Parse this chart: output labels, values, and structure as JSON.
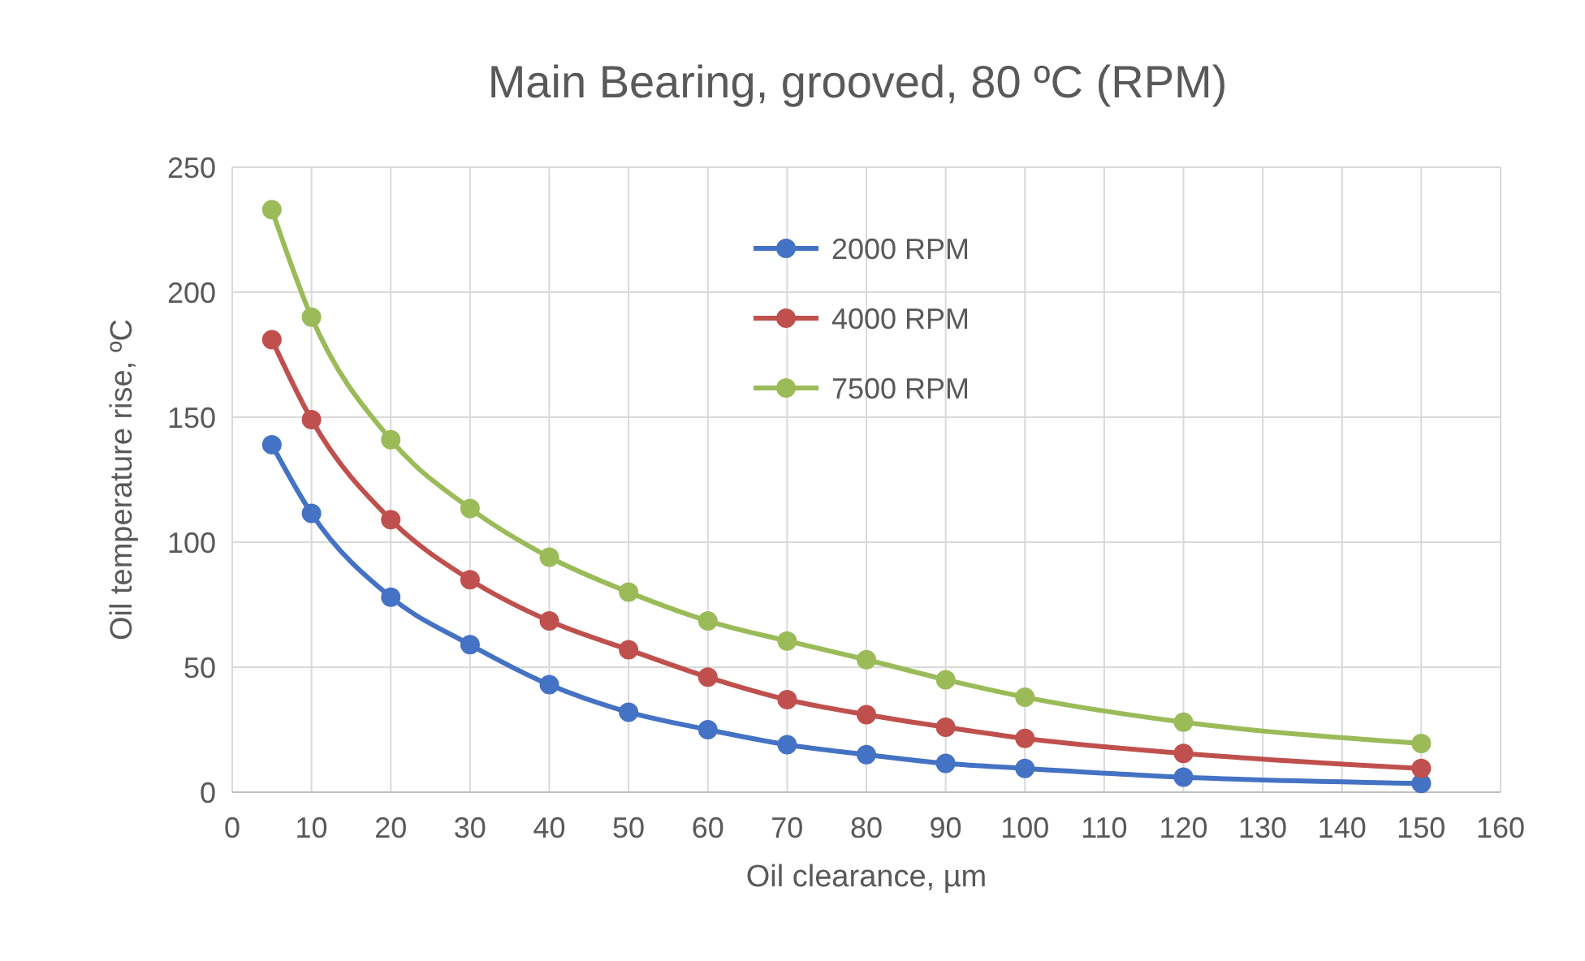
{
  "chart_data": {
    "type": "line",
    "title": "Main Bearing, grooved, 80 ºC (RPM)",
    "xlabel": "Oil clearance, µm",
    "ylabel": "Oil temperature rise, ºC",
    "x": [
      5,
      10,
      20,
      30,
      40,
      50,
      60,
      70,
      80,
      90,
      100,
      120,
      150
    ],
    "series": [
      {
        "name": "2000 RPM",
        "color": "#4472c4",
        "values": [
          139,
          111.5,
          78,
          59,
          43,
          32,
          25,
          19,
          15,
          11.5,
          9.5,
          6,
          3.5
        ]
      },
      {
        "name": "4000 RPM",
        "color": "#c0504d",
        "values": [
          181,
          149,
          109,
          85,
          68.5,
          57,
          46,
          37,
          31,
          26,
          21.5,
          15.5,
          9.5
        ]
      },
      {
        "name": "7500 RPM",
        "color": "#9bbb59",
        "values": [
          233,
          190,
          141,
          113.5,
          94,
          80,
          68.5,
          60.5,
          53,
          45,
          38,
          28,
          19.5
        ]
      }
    ],
    "xlim": [
      0,
      160
    ],
    "xticks": [
      0,
      10,
      20,
      30,
      40,
      50,
      60,
      70,
      80,
      90,
      100,
      110,
      120,
      130,
      140,
      150,
      160
    ],
    "ylim": [
      0,
      250
    ],
    "yticks": [
      0,
      50,
      100,
      150,
      200,
      250
    ],
    "grid": true,
    "legend": "top right",
    "marker": "circle",
    "line_style": "solid"
  }
}
